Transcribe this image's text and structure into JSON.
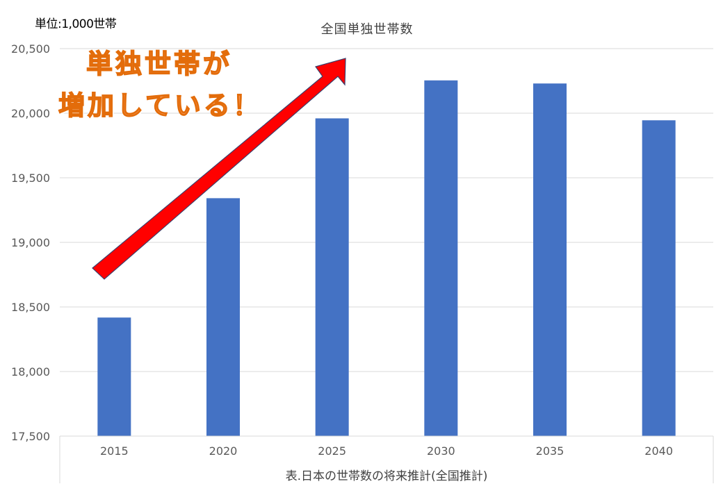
{
  "unit_label": "単位:1,000世帯",
  "caption": "表.日本の世帯数の将来推計(全国推計)",
  "callout": {
    "line1": "単独世帯が",
    "line2": "増加している！"
  },
  "colors": {
    "bar": "#4472c4",
    "arrow_fill": "#ff0000",
    "arrow_stroke": "#3a3f6b",
    "callout_text": "#f79656",
    "grid": "#d9d9d9",
    "axis_text": "#595959"
  },
  "chart_data": {
    "type": "bar",
    "title": "全国単独世帯数",
    "xlabel": "",
    "ylabel": "",
    "categories": [
      "2015",
      "2020",
      "2025",
      "2030",
      "2035",
      "2040"
    ],
    "values": [
      18418,
      19342,
      19960,
      20254,
      20230,
      19945
    ],
    "ylim": [
      17500,
      20500
    ],
    "yticks": [
      17500,
      18000,
      18500,
      19000,
      19500,
      20000,
      20500
    ],
    "ytick_labels": [
      "17,500",
      "18,000",
      "18,500",
      "19,000",
      "19,500",
      "20,000",
      "20,500"
    ],
    "grid": true,
    "legend": "none",
    "annotation_arrow": "upward trend, from 2015 toward 2025"
  }
}
